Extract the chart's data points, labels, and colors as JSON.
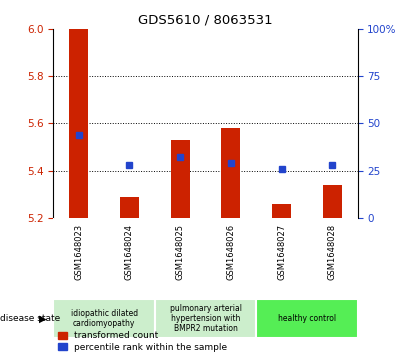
{
  "title": "GDS5610 / 8063531",
  "samples": [
    "GSM1648023",
    "GSM1648024",
    "GSM1648025",
    "GSM1648026",
    "GSM1648027",
    "GSM1648028"
  ],
  "bar_tops": [
    6.0,
    5.29,
    5.53,
    5.58,
    5.26,
    5.34
  ],
  "bar_base": 5.2,
  "percentile_values": [
    44,
    28,
    32,
    29,
    26,
    28
  ],
  "ylim_left": [
    5.2,
    6.0
  ],
  "ylim_right": [
    0,
    100
  ],
  "yticks_left": [
    5.2,
    5.4,
    5.6,
    5.8,
    6.0
  ],
  "yticks_right": [
    0,
    25,
    50,
    75,
    100
  ],
  "ytick_labels_right": [
    "0",
    "25",
    "50",
    "75",
    "100%"
  ],
  "bar_color": "#cc2200",
  "square_color": "#2244cc",
  "disease_groups": [
    {
      "label": "idiopathic dilated\ncardiomyopathy",
      "indices": [
        0,
        1
      ],
      "color": "#cceecc"
    },
    {
      "label": "pulmonary arterial\nhypertension with\nBMPR2 mutation",
      "indices": [
        2,
        3
      ],
      "color": "#cceecc"
    },
    {
      "label": "healthy control",
      "indices": [
        4,
        5
      ],
      "color": "#55ee55"
    }
  ],
  "legend_red_label": "transformed count",
  "legend_blue_label": "percentile rank within the sample",
  "disease_state_label": "disease state",
  "gsm_bg_color": "#bbbbbb",
  "bg_color": "#ffffff"
}
